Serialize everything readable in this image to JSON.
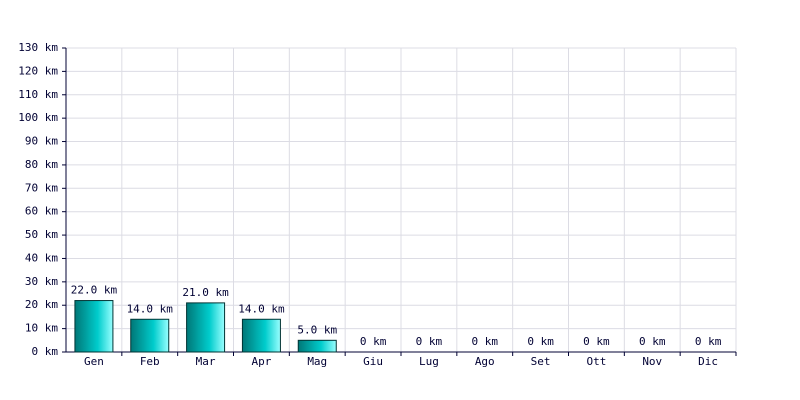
{
  "chart_data": {
    "type": "bar",
    "categories": [
      "Gen",
      "Feb",
      "Mar",
      "Apr",
      "Mag",
      "Giu",
      "Lug",
      "Ago",
      "Set",
      "Ott",
      "Nov",
      "Dic"
    ],
    "values": [
      22,
      14,
      21,
      14,
      5,
      0,
      0,
      0,
      0,
      0,
      0,
      0
    ],
    "value_labels": [
      "22.0 km",
      "14.0 km",
      "21.0 km",
      "14.0 km",
      "5.0 km",
      "0 km",
      "0 km",
      "0 km",
      "0 km",
      "0 km",
      "0 km",
      "0 km"
    ],
    "color": "#00cccc",
    "ylim": [
      0,
      130
    ],
    "yticks": [
      {
        "value": 0,
        "label": "0 km"
      },
      {
        "value": 10,
        "label": "10 km"
      },
      {
        "value": 20,
        "label": "20 km"
      },
      {
        "value": 30,
        "label": "30 km"
      },
      {
        "value": 40,
        "label": "40 km"
      },
      {
        "value": 50,
        "label": "50 km"
      },
      {
        "value": 60,
        "label": "60 km"
      },
      {
        "value": 70,
        "label": "70 km"
      },
      {
        "value": 80,
        "label": "80 km"
      },
      {
        "value": 90,
        "label": "90 km"
      },
      {
        "value": 100,
        "label": "100 km"
      },
      {
        "value": 110,
        "label": "110 km"
      },
      {
        "value": 120,
        "label": "120 km"
      },
      {
        "value": 130,
        "label": "130 km"
      }
    ],
    "grid": true
  }
}
